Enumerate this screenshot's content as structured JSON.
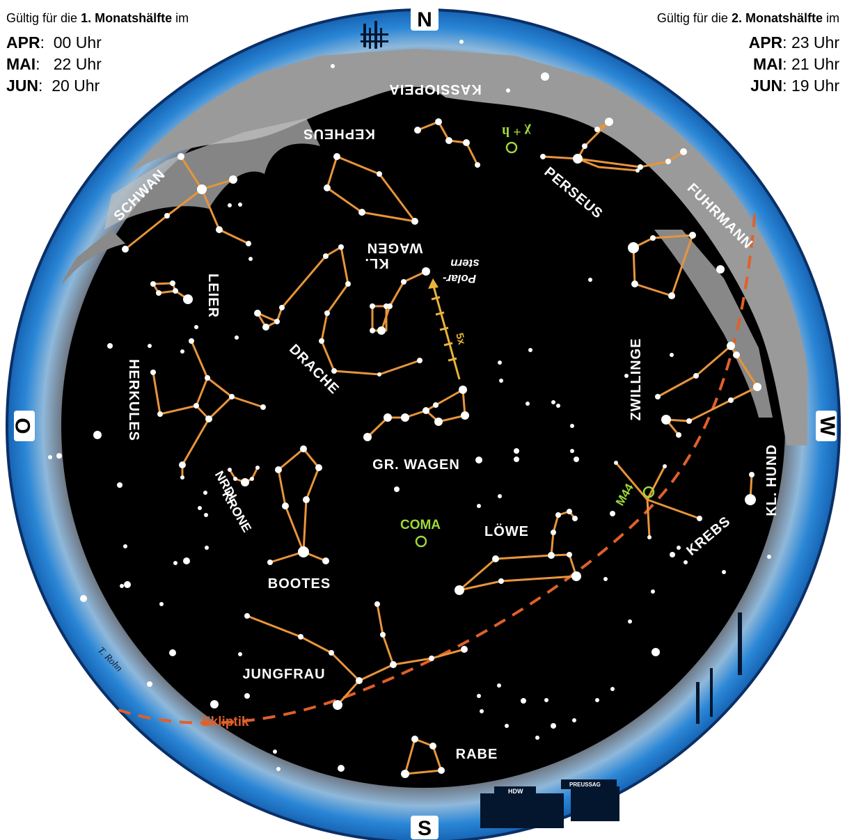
{
  "validity": {
    "left": {
      "prefix": "Gültig für die",
      "bold": "1. Monatshälfte",
      "suffix": "im",
      "rows": [
        {
          "month": "APR",
          "time": "00 Uhr"
        },
        {
          "month": "MAI",
          "time": "22 Uhr"
        },
        {
          "month": "JUN",
          "time": "20 Uhr"
        }
      ]
    },
    "right": {
      "prefix": "Gültig für die",
      "bold": "2. Monatshälfte",
      "suffix": "im",
      "rows": [
        {
          "month": "APR",
          "time": "23 Uhr"
        },
        {
          "month": "MAI",
          "time": "21 Uhr"
        },
        {
          "month": "JUN",
          "time": "19 Uhr"
        }
      ]
    }
  },
  "compass": {
    "north": "N",
    "south": "S",
    "east": "O",
    "west": "W"
  },
  "constellations": {
    "kassiopeia": "KASSIOPEIA",
    "kepheus": "KEPHEUS",
    "schwan": "SCHWAN",
    "perseus": "PERSEUS",
    "fuhrmann": "FUHRMANN",
    "kl_wagen_1": "KL.",
    "kl_wagen_2": "WAGEN",
    "leier": "LEIER",
    "drache": "DRACHE",
    "herkules": "HERKULES",
    "zwillinge": "ZWILLINGE",
    "gr_wagen": "GR. WAGEN",
    "kl_hund": "KL. HUND",
    "nrdl_krone_1": "NRDL.",
    "nrdl_krone_2": "KRONE",
    "krebs": "KREBS",
    "loewe": "LÖWE",
    "bootes": "BOOTES",
    "jungfrau": "JUNGFRAU",
    "rabe": "RABE"
  },
  "objects": {
    "polarstern_1": "Polar-",
    "polarstern_2": "stern",
    "chi_h": "χ + h",
    "m44": "M44",
    "coma": "COMA",
    "pointer": "5x"
  },
  "ecliptic": "Ekliptik",
  "signature": "T. Rohn",
  "buildings": {
    "hdw": "HDW",
    "preussag": "PREUSSAG"
  },
  "colors": {
    "sky": "#000000",
    "milky_way": "#9a9a9a",
    "horizon": "#1e78c8",
    "constellation_lines": "#e8953a",
    "ecliptic": "#e0602a",
    "deep_sky": "#9ed83a"
  }
}
